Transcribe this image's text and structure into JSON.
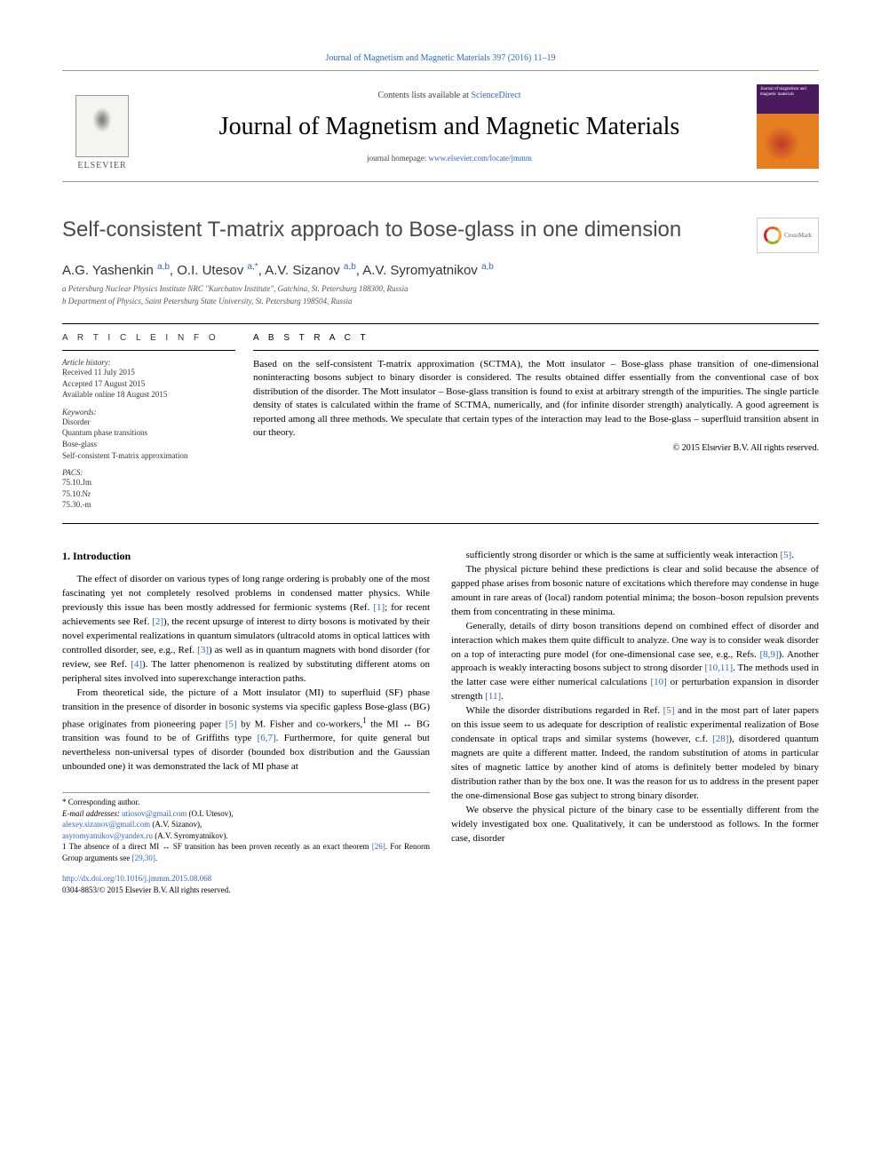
{
  "top_link": "Journal of Magnetism and Magnetic Materials 397 (2016) 11–19",
  "header": {
    "contents_prefix": "Contents lists available at ",
    "contents_link": "ScienceDirect",
    "journal_name": "Journal of Magnetism and Magnetic Materials",
    "homepage_prefix": "journal homepage: ",
    "homepage_link": "www.elsevier.com/locate/jmmm",
    "elsevier_label": "ELSEVIER",
    "cover_text": "Journal of magnetism and magnetic materials"
  },
  "title": "Self-consistent T-matrix approach to Bose-glass in one dimension",
  "crossmark": "CrossMark",
  "authors_html": "A.G. Yashenkin <sup>a,b</sup>, O.I. Utesov <sup>a,*</sup>, A.V. Sizanov <sup>a,b</sup>, A.V. Syromyatnikov <sup>a,b</sup>",
  "affiliations": [
    "a Petersburg Nuclear Physics Institute NRC \"Kurchatov Institute\", Gatchina, St. Petersburg 188300, Russia",
    "b Department of Physics, Saint Petersburg State University, St. Petersburg 198504, Russia"
  ],
  "article_info": {
    "heading": "A R T I C L E   I N F O",
    "history_label": "Article history:",
    "history": [
      "Received 11 July 2015",
      "Accepted 17 August 2015",
      "Available online 18 August 2015"
    ],
    "keywords_label": "Keywords:",
    "keywords": [
      "Disorder",
      "Quantum phase transitions",
      "Bose-glass",
      "Self-consistent T-matrix approximation"
    ],
    "pacs_label": "PACS:",
    "pacs": [
      "75.10.Jm",
      "75.10.Nr",
      "75.30.-m"
    ]
  },
  "abstract": {
    "heading": "A B S T R A C T",
    "text": "Based on the self-consistent T-matrix approximation (SCTMA), the Mott insulator – Bose-glass phase transition of one-dimensional noninteracting bosons subject to binary disorder is considered. The results obtained differ essentially from the conventional case of box distribution of the disorder. The Mott insulator – Bose-glass transition is found to exist at arbitrary strength of the impurities. The single particle density of states is calculated within the frame of SCTMA, numerically, and (for infinite disorder strength) analytically. A good agreement is reported among all three methods. We speculate that certain types of the interaction may lead to the Bose-glass – superfluid transition absent in our theory.",
    "copyright": "© 2015 Elsevier B.V. All rights reserved."
  },
  "body": {
    "section_heading": "1. Introduction",
    "left_col": [
      "The effect of disorder on various types of long range ordering is probably one of the most fascinating yet not completely resolved problems in condensed matter physics. While previously this issue has been mostly addressed for fermionic systems (Ref. <span class=\"ref\">[1]</span>; for recent achievements see Ref. <span class=\"ref\">[2]</span>), the recent upsurge of interest to dirty bosons is motivated by their novel experimental realizations in quantum simulators (ultracold atoms in optical lattices with controlled disorder, see, e.g., Ref. <span class=\"ref\">[3]</span>) as well as in quantum magnets with bond disorder (for review, see Ref. <span class=\"ref\">[4]</span>). The latter phenomenon is realized by substituting different atoms on peripheral sites involved into superexchange interaction paths.",
      "From theoretical side, the picture of a Mott insulator (MI) to superfluid (SF) phase transition in the presence of disorder in bosonic systems via specific gapless Bose-glass (BG) phase originates from pioneering paper <span class=\"ref\">[5]</span> by M. Fisher and co-workers,<sup>1</sup> the MI ↔ BG transition was found to be of Griffiths type <span class=\"ref\">[6,7]</span>. Furthermore, for quite general but nevertheless non-universal types of disorder (bounded box distribution and the Gaussian unbounded one) it was demonstrated the lack of MI phase at"
    ],
    "right_col": [
      "sufficiently strong disorder or which is the same at sufficiently weak interaction <span class=\"ref\">[5]</span>.",
      "The physical picture behind these predictions is clear and solid because the absence of gapped phase arises from bosonic nature of excitations which therefore may condense in huge amount in rare areas of (local) random potential minima; the boson–boson repulsion prevents them from concentrating in these minima.",
      "Generally, details of dirty boson transitions depend on combined effect of disorder and interaction which makes them quite difficult to analyze. One way is to consider weak disorder on a top of interacting pure model (for one-dimensional case see, e.g., Refs. <span class=\"ref\">[8,9]</span>). Another approach is weakly interacting bosons subject to strong disorder <span class=\"ref\">[10,11]</span>. The methods used in the latter case were either numerical calculations <span class=\"ref\">[10]</span> or perturbation expansion in disorder strength <span class=\"ref\">[11]</span>.",
      "While the disorder distributions regarded in Ref. <span class=\"ref\">[5]</span> and in the most part of later papers on this issue seem to us adequate for description of realistic experimental realization of Bose condensate in optical traps and similar systems (however, c.f. <span class=\"ref\">[28]</span>), disordered quantum magnets are quite a different matter. Indeed, the random substitution of atoms in particular sites of magnetic lattice by another kind of atoms is definitely better modeled by binary distribution rather than by the box one. It was the reason for us to address in the present paper the one-dimensional Bose gas subject to strong binary disorder.",
      "We observe the physical picture of the binary case to be essentially different from the widely investigated box one. Qualitatively, it can be understood as follows. In the former case, disorder"
    ]
  },
  "footnotes": {
    "corr": "* Corresponding author.",
    "email_label": "E-mail addresses: ",
    "emails": [
      {
        "addr": "utiosov@gmail.com",
        "who": "(O.I. Utesov),"
      },
      {
        "addr": "alexey.sizanov@gmail.com",
        "who": "(A.V. Sizanov),"
      },
      {
        "addr": "asyromyatnikov@yandex.ru",
        "who": "(A.V. Syromyatnikov)."
      }
    ],
    "n1": "1 The absence of a direct MI ↔ SF transition has been proven recently as an exact theorem <span class=\"ref\">[26]</span>. For Renorm Group arguments see <span class=\"ref\">[29,30]</span>."
  },
  "doi": {
    "link": "http://dx.doi.org/10.1016/j.jmmm.2015.08.068",
    "issn": "0304-8853/© 2015 Elsevier B.V. All rights reserved."
  },
  "colors": {
    "link": "#3366cc",
    "text": "#000000",
    "muted": "#555555"
  }
}
